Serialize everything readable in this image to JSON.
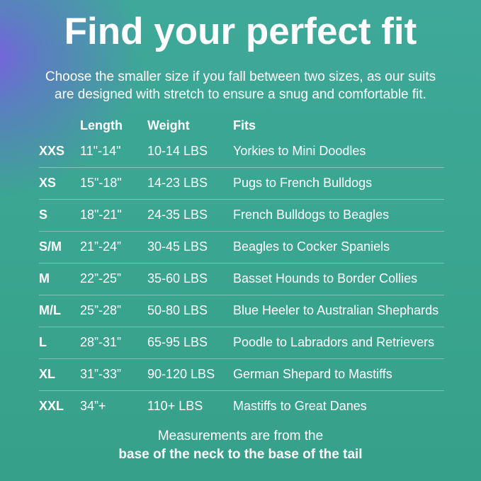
{
  "title": "Find your perfect fit",
  "subtitle": [
    "Choose the smaller size if you fall between two sizes, as our suits",
    "are designed with stretch to ensure a snug and comfortable fit."
  ],
  "table": {
    "headers": [
      "",
      "Length",
      "Weight",
      "Fits"
    ],
    "rows": [
      [
        "XXS",
        "11\"-14\"",
        "10-14 LBS",
        "Yorkies to Mini Doodles"
      ],
      [
        "XS",
        "15\"-18\"",
        "14-23 LBS",
        "Pugs to French Bulldogs"
      ],
      [
        "S",
        "18\"-21\"",
        "24-35 LBS",
        "French Bulldogs to Beagles"
      ],
      [
        "S/M",
        "21”-24”",
        "30-45 LBS",
        "Beagles to Cocker Spaniels"
      ],
      [
        "M",
        "22”-25”",
        "35-60 LBS",
        "Basset Hounds to Border Collies"
      ],
      [
        "M/L",
        "25”-28”",
        "50-80 LBS",
        "Blue Heeler to Australian Shephards"
      ],
      [
        "L",
        "28”-31”",
        "65-95 LBS",
        "Poodle to Labradors and Retrievers"
      ],
      [
        "XL",
        "31”-33”",
        "90-120 LBS",
        "German Shepard to Mastiffs"
      ],
      [
        "XXL",
        "34”+",
        "110+ LBS",
        "Mastiffs to Great Danes"
      ]
    ]
  },
  "footer": {
    "line1": "Measurements are from the",
    "line2": "base of the neck to the base of the tail"
  },
  "colors": {
    "background": "#3aa590",
    "accent_glow": "#7a5fe0",
    "text": "#ffffff"
  }
}
